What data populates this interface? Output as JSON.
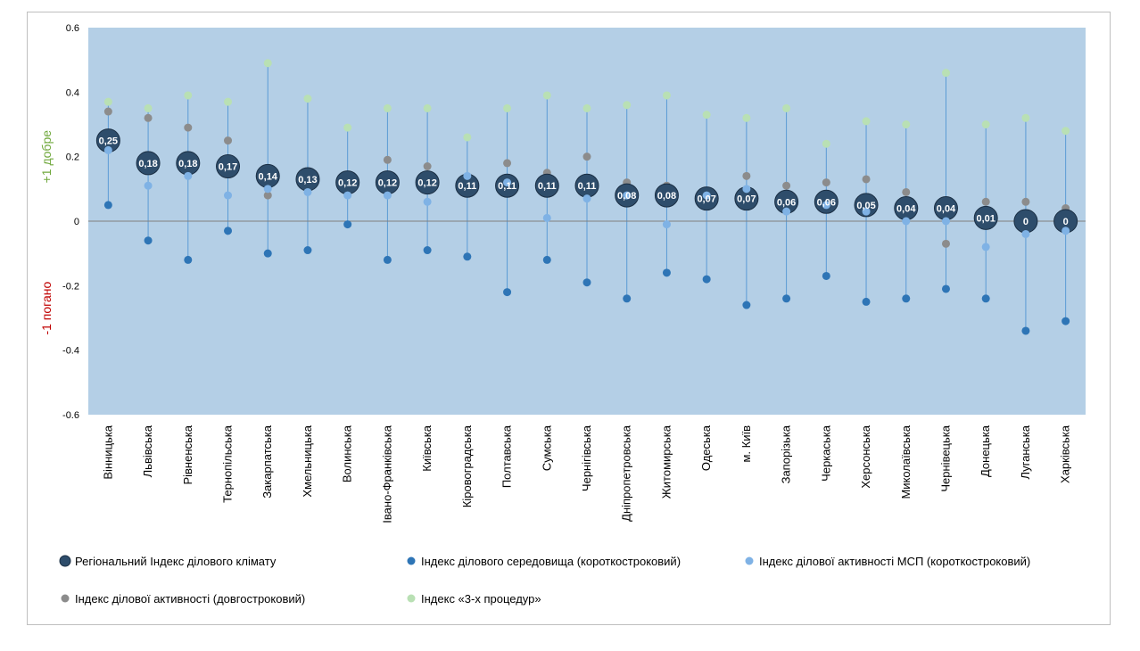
{
  "chart_data": {
    "type": "scatter",
    "ylabel_good": "+1 добре",
    "ylabel_bad": "-1 погано",
    "ylim": [
      -0.6,
      0.6
    ],
    "yticks": [
      "0.6",
      "0.4",
      "0.2",
      "0",
      "-0.2",
      "-0.4",
      "-0.6"
    ],
    "ytick_values": [
      0.6,
      0.4,
      0.2,
      0,
      -0.2,
      -0.4,
      -0.6
    ],
    "grid": false,
    "legend_position": "bottom",
    "categories": [
      "Вінницька",
      "Львівська",
      "Рівненська",
      "Тернопільська",
      "Закарпатська",
      "Хмельницька",
      "Волинська",
      "Івано-Франківська",
      "Київська",
      "Кіровоградська",
      "Полтавська",
      "Сумська",
      "Чернігівська",
      "Дніпропетровська",
      "Житомирська",
      "Одеська",
      "м. Київ",
      "Запорізька",
      "Черкаська",
      "Херсонська",
      "Миколаївська",
      "Чернівецька",
      "Донецька",
      "Луганська",
      "Харківська"
    ],
    "series": [
      {
        "name": "Регіональний Індекс ділового  клімату",
        "color": "#2e4d6b",
        "values": [
          0.25,
          0.18,
          0.18,
          0.17,
          0.14,
          0.13,
          0.12,
          0.12,
          0.12,
          0.11,
          0.11,
          0.11,
          0.11,
          0.08,
          0.08,
          0.07,
          0.07,
          0.06,
          0.06,
          0.05,
          0.04,
          0.04,
          0.01,
          0,
          0
        ],
        "labels": [
          "0,25",
          "0,18",
          "0,18",
          "0,17",
          "0,14",
          "0,13",
          "0,12",
          "0,12",
          "0,12",
          "0,11",
          "0,11",
          "0,11",
          "0,11",
          "0,08",
          "0,08",
          "0,07",
          "0,07",
          "0,06",
          "0,06",
          "0,05",
          "0,04",
          "0,04",
          "0,01",
          "0",
          "0"
        ]
      },
      {
        "name": "Індекс ділового середовища (короткостроковий)",
        "color": "#2e75b6",
        "values": [
          0.05,
          -0.06,
          -0.12,
          -0.03,
          -0.1,
          -0.09,
          -0.01,
          -0.12,
          -0.09,
          -0.11,
          -0.22,
          -0.12,
          -0.19,
          -0.24,
          -0.16,
          -0.18,
          -0.26,
          -0.24,
          -0.17,
          -0.25,
          -0.24,
          -0.21,
          -0.24,
          -0.34,
          -0.31
        ]
      },
      {
        "name": "Індекс ділової активності МСП (короткостроковий)",
        "color": "#7fb2e5",
        "values": [
          0.22,
          0.11,
          0.14,
          0.08,
          0.1,
          0.09,
          0.08,
          0.08,
          0.06,
          0.14,
          0.12,
          0.01,
          0.07,
          0.08,
          -0.01,
          0.08,
          0.1,
          0.03,
          0.05,
          0.03,
          0.0,
          0.0,
          -0.08,
          -0.04,
          -0.03
        ]
      },
      {
        "name": "Індекс ділової активності (довгостроковий)",
        "color": "#8c8c8c",
        "values": [
          0.34,
          0.32,
          0.29,
          0.25,
          0.08,
          0.15,
          0.11,
          0.19,
          0.17,
          0.13,
          0.18,
          0.15,
          0.2,
          0.12,
          0.11,
          0.08,
          0.14,
          0.11,
          0.12,
          0.13,
          0.09,
          -0.07,
          0.06,
          0.06,
          0.04
        ]
      },
      {
        "name": "Індекс «3-х процедур»",
        "color": "#b9e0b4",
        "values": [
          0.37,
          0.35,
          0.39,
          0.37,
          0.49,
          0.38,
          0.29,
          0.35,
          0.35,
          0.26,
          0.35,
          0.39,
          0.35,
          0.36,
          0.39,
          0.33,
          0.32,
          0.35,
          0.24,
          0.31,
          0.3,
          0.46,
          0.3,
          0.32,
          0.28
        ]
      }
    ]
  }
}
